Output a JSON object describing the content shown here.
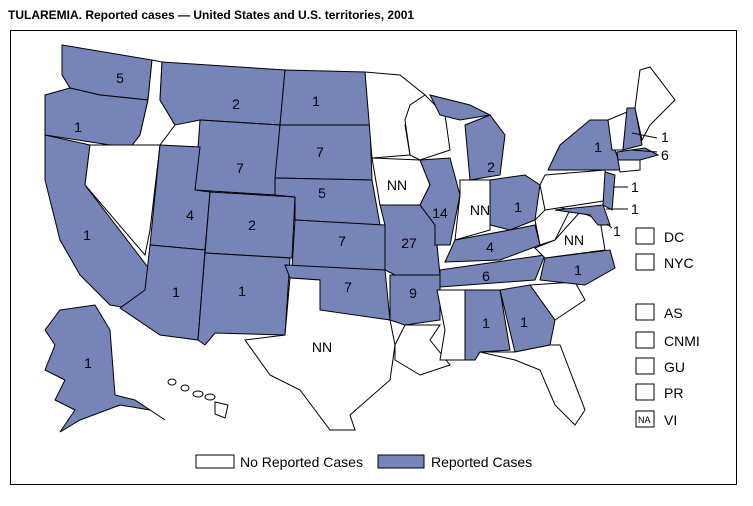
{
  "title": "TULAREMIA. Reported cases — United States and U.S. territories, 2001",
  "colors": {
    "reported": "#7684b8",
    "none": "#ffffff"
  },
  "states": {
    "WA": "5",
    "OR": "1",
    "CA": "1",
    "MT": "2",
    "WY": "7",
    "UT": "4",
    "AZ": "1",
    "CO": "2",
    "NM": "1",
    "ND": "1",
    "SD": "7",
    "NE": "5",
    "KS": "7",
    "OK": "7",
    "TX": "NN",
    "IA": "NN",
    "MO": "27",
    "AR": "9",
    "IL": "14",
    "IN": "NN",
    "MI": "2",
    "OH": "1",
    "KY": "4",
    "TN": "6",
    "AL": "1",
    "GA": "1",
    "NC": "1",
    "VA": "NN",
    "NY": "1",
    "NH": "1",
    "MA": "6",
    "NJ": "1",
    "MD": "1",
    "DE": "1",
    "AK": "1"
  },
  "territories": [
    {
      "code": "DC",
      "box": ""
    },
    {
      "code": "NYC",
      "box": ""
    },
    {
      "code": "AS",
      "box": ""
    },
    {
      "code": "CNMI",
      "box": ""
    },
    {
      "code": "GU",
      "box": ""
    },
    {
      "code": "PR",
      "box": ""
    },
    {
      "code": "VI",
      "box": "NA"
    }
  ],
  "legend": {
    "none": "No Reported Cases",
    "reported": "Reported Cases"
  }
}
